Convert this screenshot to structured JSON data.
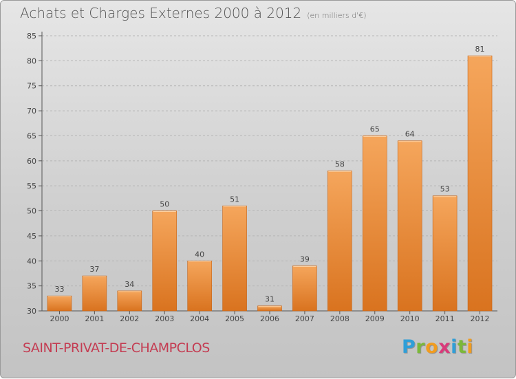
{
  "header": {
    "title": "Achats et Charges Externes 2000 à 2012",
    "subtitle": "(en milliers d'€)"
  },
  "footer": {
    "town": "SAINT-PRIVAT-DE-CHAMPCLOS"
  },
  "logo": {
    "letters": [
      "P",
      "r",
      "o",
      "x",
      "i",
      "t",
      "i"
    ],
    "colors": [
      "#2f9fd8",
      "#7bb83a",
      "#f19c1f",
      "#d93a7a",
      "#2f9fd8",
      "#7bb83a",
      "#f19c1f"
    ]
  },
  "colors": {
    "bar_top": "#f5a65c",
    "bar_bottom": "#d9731f",
    "bar_edge": "#c46418",
    "grid": "#b5b5b5",
    "text": "#444444"
  },
  "chart_data": {
    "type": "bar",
    "title": "Achats et Charges Externes 2000 à 2012",
    "subtitle": "(en milliers d'€)",
    "categories": [
      "2000",
      "2001",
      "2002",
      "2003",
      "2004",
      "2005",
      "2006",
      "2007",
      "2008",
      "2009",
      "2010",
      "2011",
      "2012"
    ],
    "values": [
      33,
      37,
      34,
      50,
      40,
      51,
      31,
      39,
      58,
      65,
      64,
      53,
      81
    ],
    "ylim": [
      30,
      85
    ],
    "yticks": [
      30,
      35,
      40,
      45,
      50,
      55,
      60,
      65,
      70,
      75,
      80,
      85
    ],
    "grid": "horizontal-dashed",
    "xlabel": "",
    "ylabel": ""
  }
}
